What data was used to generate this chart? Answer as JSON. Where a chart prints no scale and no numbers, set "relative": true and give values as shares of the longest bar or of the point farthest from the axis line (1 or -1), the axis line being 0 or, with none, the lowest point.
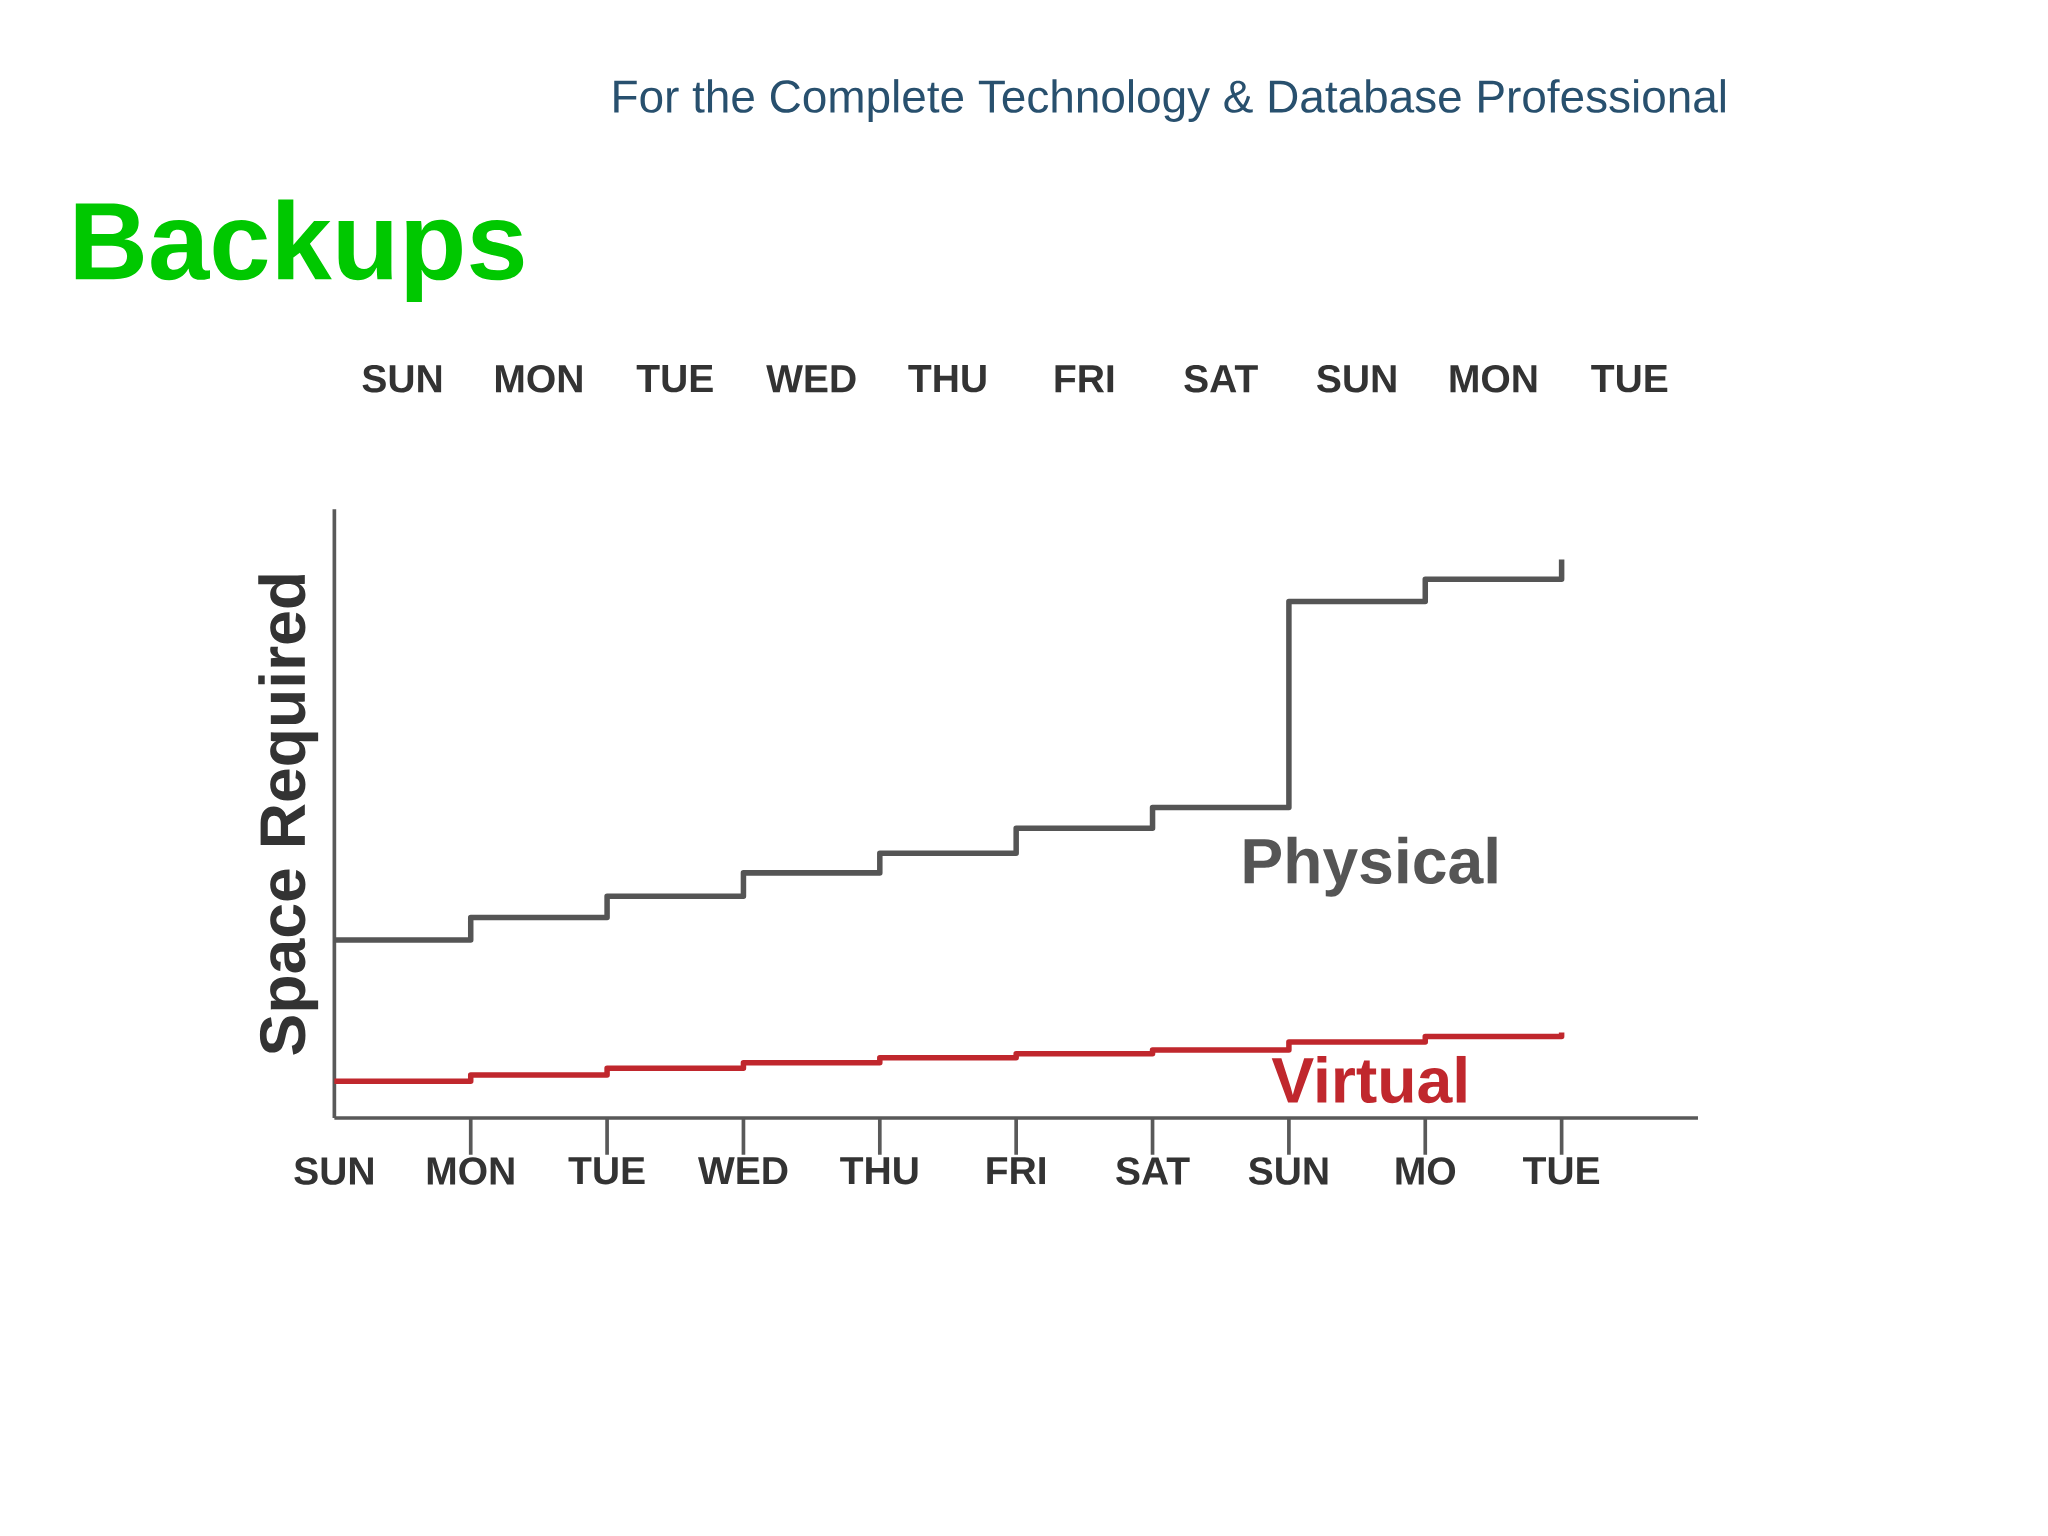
{
  "chart_data": {
    "type": "step",
    "title": "Backups",
    "ylabel": "Space Required",
    "relative": true,
    "annotations": [
      "For the Complete Technology & Database Professional",
      "SUN",
      "MON",
      "TUE",
      "WED",
      "THU",
      "FRI",
      "SAT",
      "SUN",
      "MON",
      "TUE"
    ],
    "categories": [
      "SUN",
      "MON",
      "TUE",
      "WED",
      "THU",
      "FRI",
      "SAT",
      "SUN",
      "MO",
      "TUE"
    ],
    "series": [
      {
        "name": "Physical",
        "color": "#555555",
        "values": [
          0.319,
          0.359,
          0.397,
          0.439,
          0.474,
          0.519,
          0.556,
          0.925,
          0.965,
          1
        ]
      },
      {
        "name": "Virtual",
        "color": "#c0272d",
        "values": [
          0.066,
          0.077,
          0.089,
          0.099,
          0.108,
          0.115,
          0.122,
          0.136,
          0.146,
          0.153
        ]
      }
    ]
  }
}
